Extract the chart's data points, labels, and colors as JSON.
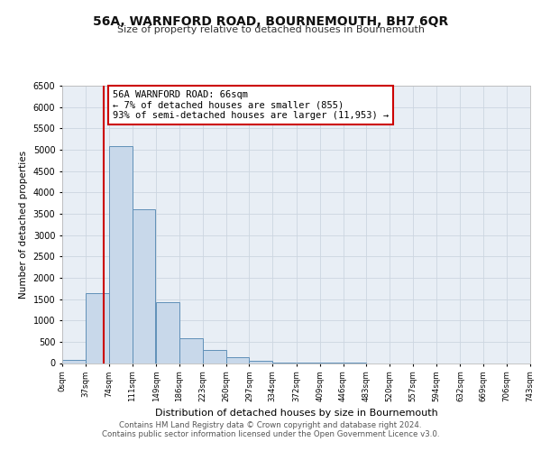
{
  "title": "56A, WARNFORD ROAD, BOURNEMOUTH, BH7 6QR",
  "subtitle": "Size of property relative to detached houses in Bournemouth",
  "xlabel": "Distribution of detached houses by size in Bournemouth",
  "ylabel": "Number of detached properties",
  "bin_labels": [
    "0sqm",
    "37sqm",
    "74sqm",
    "111sqm",
    "149sqm",
    "186sqm",
    "223sqm",
    "260sqm",
    "297sqm",
    "334sqm",
    "372sqm",
    "409sqm",
    "446sqm",
    "483sqm",
    "520sqm",
    "557sqm",
    "594sqm",
    "632sqm",
    "669sqm",
    "706sqm",
    "743sqm"
  ],
  "bin_edges": [
    0,
    37,
    74,
    111,
    149,
    186,
    223,
    260,
    297,
    334,
    372,
    409,
    446,
    483,
    520,
    557,
    594,
    632,
    669,
    706,
    743
  ],
  "bar_heights": [
    75,
    1630,
    5080,
    3600,
    1420,
    590,
    305,
    140,
    50,
    20,
    10,
    5,
    3,
    0,
    0,
    0,
    0,
    0,
    0,
    0
  ],
  "bar_color": "#c8d8ea",
  "bar_edge_color": "#6090b8",
  "property_size": 66,
  "red_line_color": "#cc0000",
  "annotation_text": "56A WARNFORD ROAD: 66sqm\n← 7% of detached houses are smaller (855)\n93% of semi-detached houses are larger (11,953) →",
  "annotation_box_color": "#ffffff",
  "annotation_box_edge": "#cc0000",
  "ylim": [
    0,
    6500
  ],
  "yticks": [
    0,
    500,
    1000,
    1500,
    2000,
    2500,
    3000,
    3500,
    4000,
    4500,
    5000,
    5500,
    6000,
    6500
  ],
  "grid_color": "#ccd5e0",
  "background_color": "#e8eef5",
  "footer_line1": "Contains HM Land Registry data © Crown copyright and database right 2024.",
  "footer_line2": "Contains public sector information licensed under the Open Government Licence v3.0."
}
